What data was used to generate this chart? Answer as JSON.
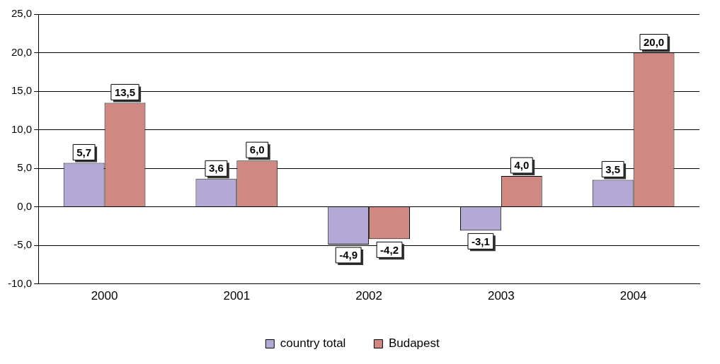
{
  "chart_data": {
    "type": "bar",
    "categories": [
      "2000",
      "2001",
      "2002",
      "2003",
      "2004"
    ],
    "series": [
      {
        "name": "country total",
        "color": "#b3a9d4",
        "values": [
          5.7,
          3.6,
          -4.9,
          -3.1,
          3.5
        ],
        "value_labels": [
          "5,7",
          "3,6",
          "-4,9",
          "-3,1",
          "3,5"
        ]
      },
      {
        "name": "Budapest",
        "color": "#cf8882",
        "values": [
          13.5,
          6.0,
          -4.2,
          4.0,
          20.0
        ],
        "value_labels": [
          "13,5",
          "6,0",
          "-4,2",
          "4,0",
          "20,0"
        ]
      }
    ],
    "ylim": [
      -10,
      25
    ],
    "yticks": [
      {
        "value": -10,
        "label": "-10,0"
      },
      {
        "value": -5,
        "label": "-5,0"
      },
      {
        "value": 0,
        "label": "0,0"
      },
      {
        "value": 5,
        "label": "5,0"
      },
      {
        "value": 10,
        "label": "10,0"
      },
      {
        "value": 15,
        "label": "15,0"
      },
      {
        "value": 20,
        "label": "20,0"
      },
      {
        "value": 25,
        "label": "25,0"
      }
    ],
    "grid": "y",
    "legend": "bottom"
  }
}
